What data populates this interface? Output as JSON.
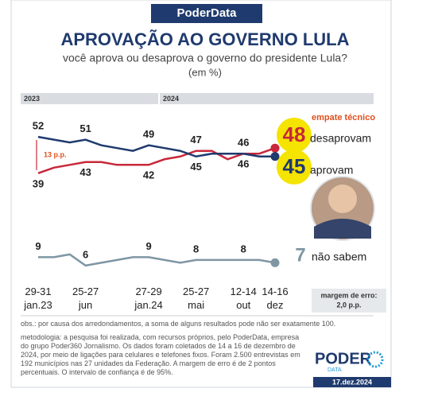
{
  "header": "PoderData",
  "chart_data": {
    "type": "line",
    "title": "APROVAÇÃO AO GOVERNO LULA",
    "subtitle": "você aprova ou desaprova o governo do presidente Lula?",
    "unit_note": "(em %)",
    "periods": [
      "2023",
      "2024"
    ],
    "categories": [
      "29-31\njan.23",
      null,
      null,
      "25-27\njun",
      null,
      null,
      null,
      "27-29\njan.24",
      null,
      null,
      "25-27\nmai",
      null,
      null,
      "12-14\nout",
      null,
      "14-16\ndez"
    ],
    "series": [
      {
        "name": "desaprovam",
        "color": "#c8283a",
        "values": [
          39,
          41,
          42,
          43,
          43,
          42,
          42,
          42,
          44,
          45,
          47,
          47,
          44,
          46,
          46,
          48
        ]
      },
      {
        "name": "aprovam",
        "color": "#1f3a6e",
        "values": [
          52,
          51,
          50,
          51,
          49,
          48,
          47,
          49,
          48,
          47,
          45,
          46,
          46,
          46,
          45,
          45
        ]
      },
      {
        "name": "não sabem",
        "color": "#7f96a3",
        "values": [
          9,
          9,
          10,
          6,
          7,
          8,
          9,
          9,
          8,
          7,
          8,
          8,
          8,
          8,
          8,
          7
        ]
      }
    ],
    "labeled_points": [
      0,
      3,
      7,
      10,
      13
    ],
    "ylim": [
      0,
      60
    ],
    "annotations": [
      "empate técnico",
      "13 p.p."
    ]
  },
  "margin_note": {
    "title": "margem de erro:",
    "value": "2,0 p.p."
  },
  "obs": "obs.: por causa dos arredondamentos, a soma de alguns resultados pode não ser exatamente 100.",
  "metodologia": "metodologia: a pesquisa foi realizada, com recursos próprios, pelo PoderData, empresa do grupo Poder360 Jornalismo. Os dados foram coletados de 14 a 16 de dezembro de 2024, por meio de ligações para celulares e telefones fixos. Foram 2.500 entrevistas em 192 municípios nas 27 unidades da Federação. A margem de erro é de 2 pontos percentuais. O intervalo de confiança é de 95%.",
  "logo": {
    "name": "PODER",
    "sub": "DATA"
  },
  "date": "17.dez.2024"
}
